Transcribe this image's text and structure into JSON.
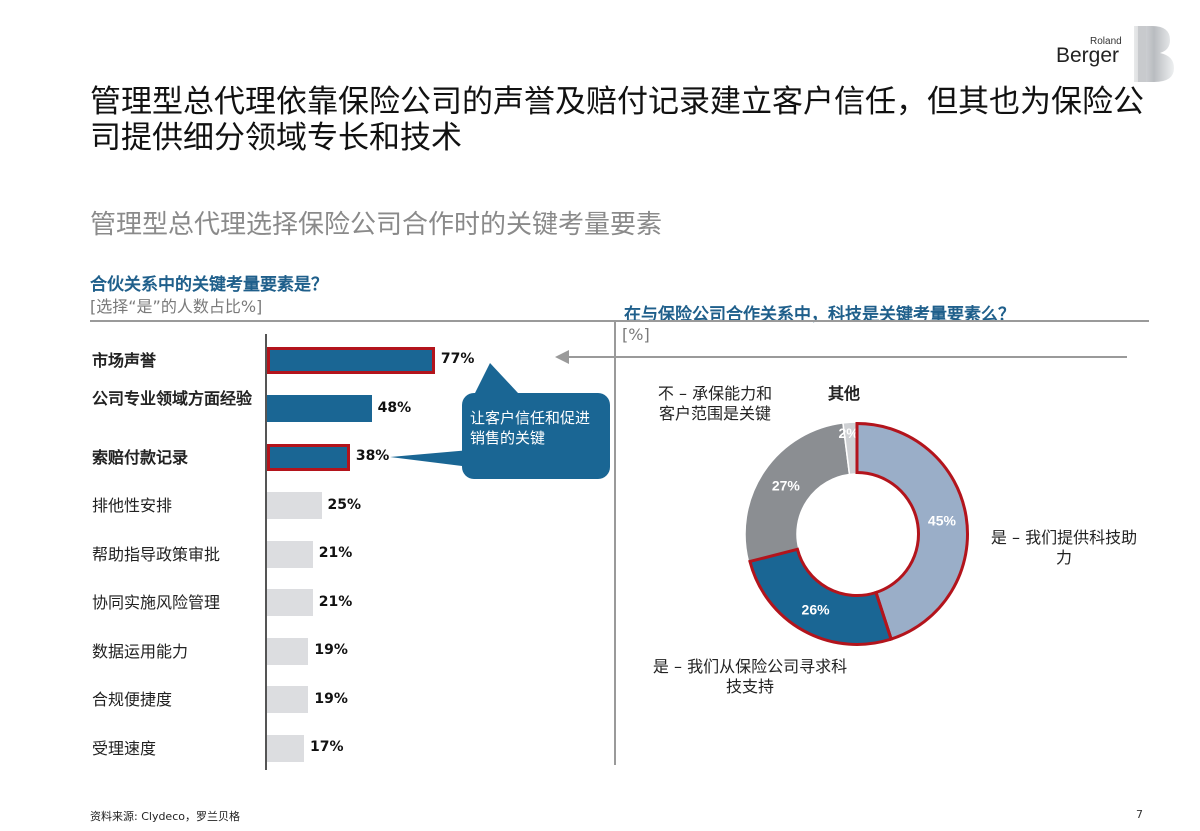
{
  "brand": {
    "line1": "Roland",
    "line2": "Berger"
  },
  "title": "管理型总代理依靠保险公司的声誉及赔付记录建立客户信任，但其也为保险公司提供细分领域专长和技术",
  "subtitle": "管理型总代理选择保险公司合作时的关键考量要素",
  "colors": {
    "dark_blue": "#1a6694",
    "light_bar": "#dcdde0",
    "red_outline": "#b3141c",
    "light_blue": "#9aaec8",
    "gray": "#8b8e92",
    "light_gray": "#cfd1d4"
  },
  "left_panel": {
    "question": "合伙关系中的关键考量要素是？",
    "unit": "[选择“是”的人数占比%]",
    "callout": "让客户信任和促进销售的关键"
  },
  "right_panel": {
    "question": "在与保险公司合作关系中，科技是关键考量要素么？",
    "unit": "[%]",
    "annotations": {
      "no": "不 – 承保能力和客户范围是关键",
      "other": "其他",
      "yes_provide": "是 – 我们提供科技助力",
      "yes_seek": "是 – 我们从保险公司寻求科技支持"
    }
  },
  "chart_data": [
    {
      "type": "bar",
      "orientation": "horizontal",
      "title": "合伙关系中的关键考量要素是？",
      "unit": "[选择“是”的人数占比%]",
      "categories": [
        "市场声誉",
        "公司专业领域方面经验",
        "索赔付款记录",
        "排他性安排",
        "帮助指导政策审批",
        "协同实施风险管理",
        "数据运用能力",
        "合规便捷度",
        "受理速度"
      ],
      "values": [
        77,
        48,
        38,
        25,
        21,
        21,
        19,
        19,
        17
      ],
      "value_labels": [
        "77%",
        "48%",
        "38%",
        "25%",
        "21%",
        "21%",
        "19%",
        "19%",
        "17%"
      ],
      "highlighted": [
        true,
        false,
        true,
        false,
        false,
        false,
        false,
        false,
        false
      ],
      "emphasized": [
        true,
        true,
        true,
        false,
        false,
        false,
        false,
        false,
        false
      ]
    },
    {
      "type": "pie",
      "variant": "donut",
      "title": "在与保险公司合作关系中，科技是关键考量要素么？",
      "unit": "[%]",
      "slices": [
        {
          "key": "yes_provide",
          "value": 45,
          "label": "45%",
          "color": "#9aaec8",
          "highlighted": true
        },
        {
          "key": "yes_seek",
          "value": 26,
          "label": "26%",
          "color": "#1a6694",
          "highlighted": true
        },
        {
          "key": "no",
          "value": 27,
          "label": "27%",
          "color": "#8b8e92",
          "highlighted": false
        },
        {
          "key": "other",
          "value": 2,
          "label": "2%",
          "color": "#cfd1d4",
          "highlighted": false
        }
      ]
    }
  ],
  "footer": {
    "source": "资料来源: Clydeco，罗兰贝格",
    "page": "7"
  }
}
